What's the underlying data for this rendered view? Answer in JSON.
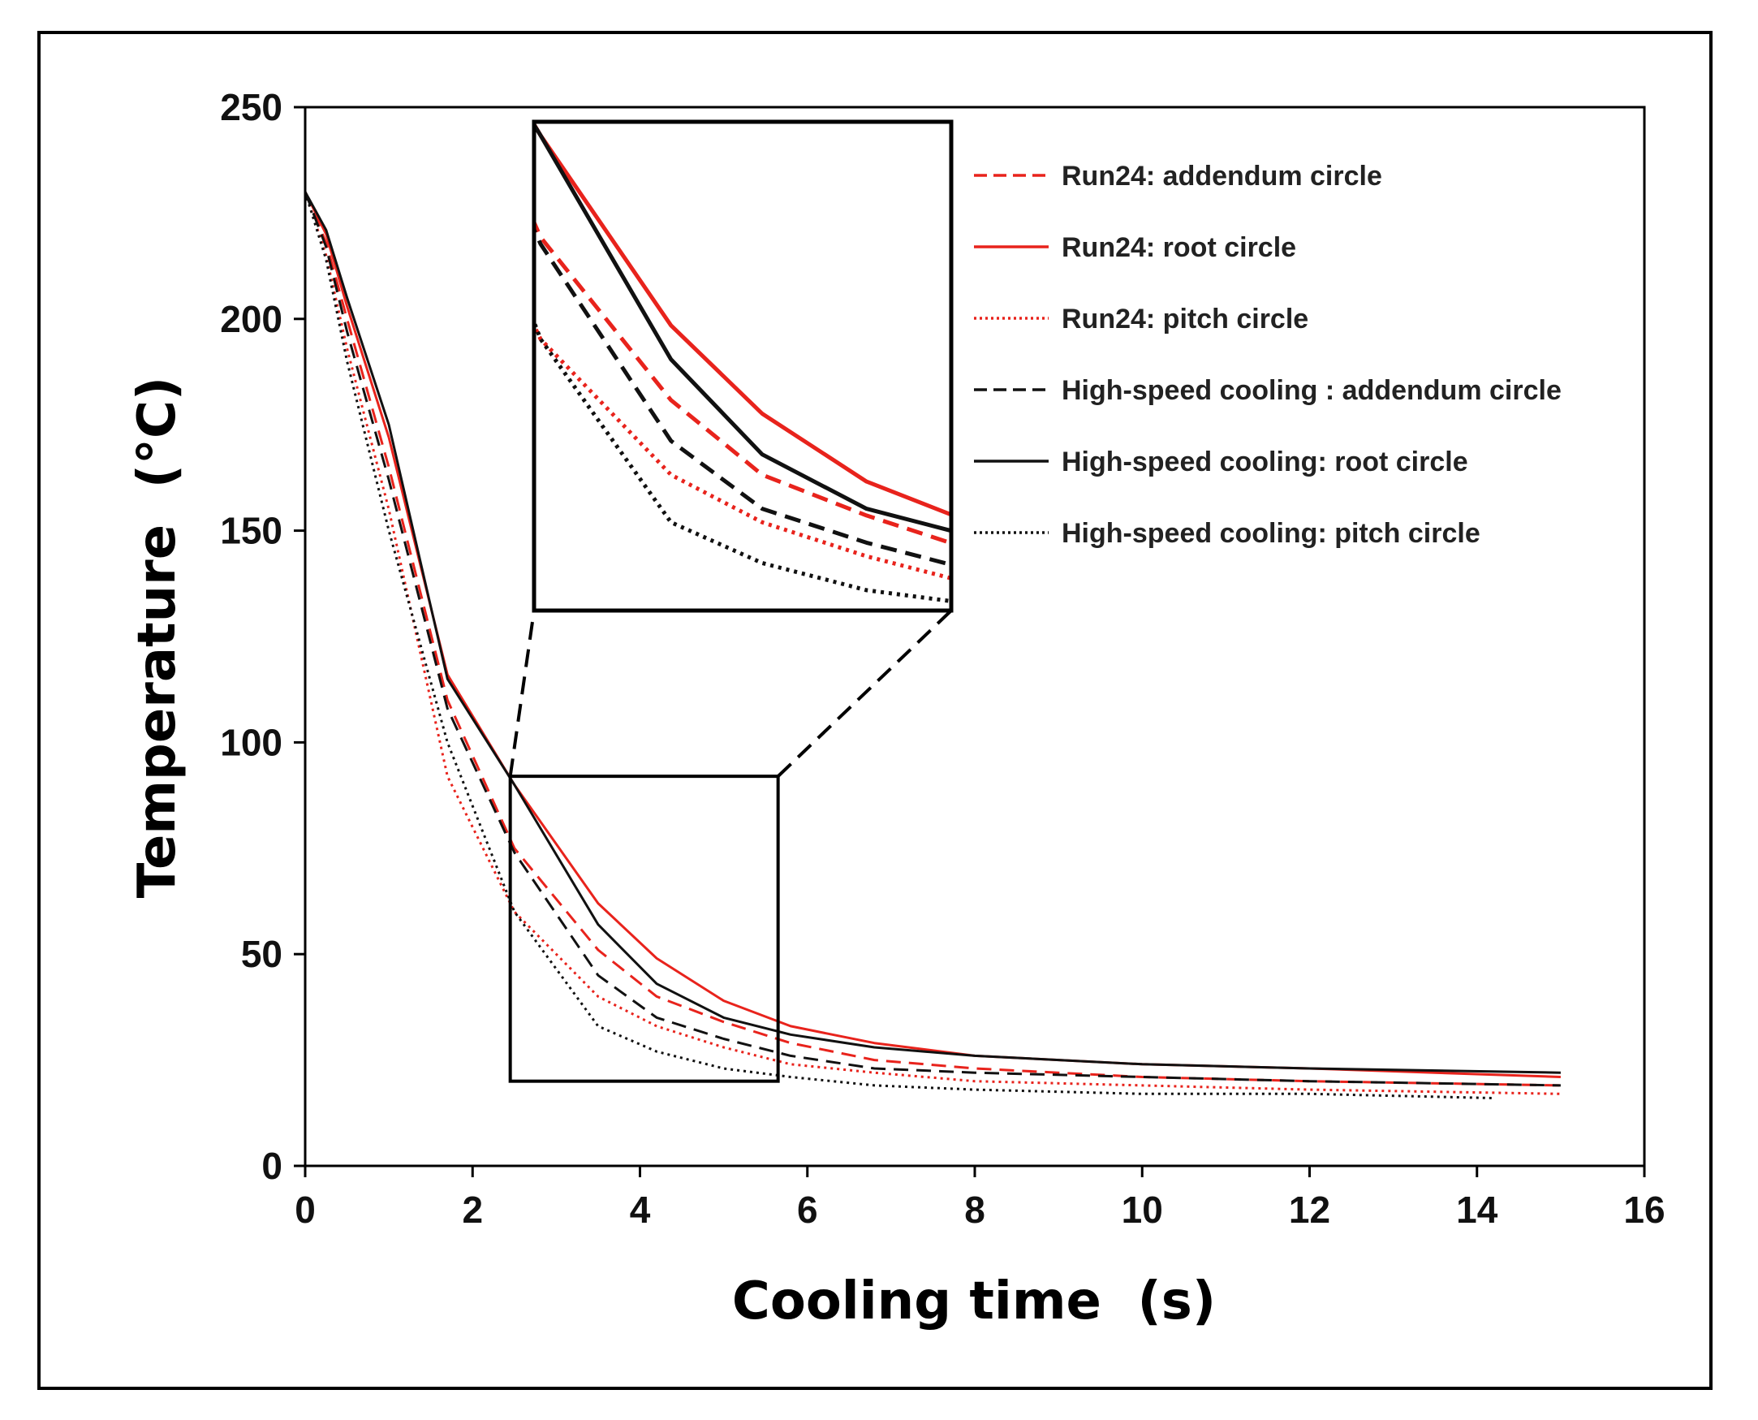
{
  "chart_data": {
    "type": "line",
    "xlabel": "Cooling time  (s)",
    "ylabel": "Temperature  (°C)",
    "xlim": [
      0,
      16
    ],
    "ylim": [
      0,
      250
    ],
    "x_ticks": [
      0,
      2,
      4,
      6,
      8,
      10,
      12,
      14,
      16
    ],
    "y_ticks": [
      0,
      50,
      100,
      150,
      200,
      250
    ],
    "grid": false,
    "legend_position": "top-right",
    "zoom_region": {
      "x": [
        2.45,
        5.65
      ],
      "y": [
        20,
        92
      ]
    },
    "series": [
      {
        "name": "Run24: addendum circle",
        "color": "#e8231c",
        "style": "dashed",
        "x": [
          0,
          0.25,
          0.5,
          1,
          1.7,
          2.5,
          3.5,
          4.2,
          5,
          5.8,
          6.8,
          8,
          10,
          12,
          15
        ],
        "y": [
          230,
          218,
          200,
          165,
          110,
          75,
          51,
          40,
          34,
          29,
          25,
          23,
          21,
          20,
          19
        ]
      },
      {
        "name": "Run24: root circle",
        "color": "#e8231c",
        "style": "solid",
        "x": [
          0,
          0.25,
          0.5,
          1,
          1.7,
          2.5,
          3.5,
          4.2,
          5,
          5.8,
          6.8,
          8,
          10,
          12,
          15
        ],
        "y": [
          230,
          220,
          203,
          172,
          116,
          90,
          62,
          49,
          39,
          33,
          29,
          26,
          24,
          23,
          21
        ]
      },
      {
        "name": "Run24: pitch circle",
        "color": "#e8231c",
        "style": "dotted",
        "x": [
          0,
          0.25,
          0.5,
          1,
          1.7,
          2.5,
          3.5,
          4.2,
          5,
          5.8,
          6.8,
          8,
          10,
          12,
          15
        ],
        "y": [
          230,
          215,
          193,
          155,
          92,
          60,
          40,
          33,
          28,
          24,
          22,
          20,
          19,
          18,
          17
        ]
      },
      {
        "name": "High-speed cooling : addendum circle",
        "color": "#111111",
        "style": "dashed",
        "x": [
          0,
          0.25,
          0.5,
          1,
          1.7,
          2.5,
          3.5,
          4.2,
          5,
          5.8,
          6.8,
          8,
          10,
          12,
          15
        ],
        "y": [
          230,
          217,
          197,
          162,
          108,
          74,
          45,
          35,
          30,
          26,
          23,
          22,
          21,
          20,
          19
        ]
      },
      {
        "name": "High-speed cooling: root circle",
        "color": "#111111",
        "style": "solid",
        "x": [
          0,
          0.25,
          0.5,
          1,
          1.7,
          2.5,
          3.5,
          4.2,
          5,
          5.8,
          6.8,
          8,
          10,
          12,
          15
        ],
        "y": [
          230,
          221,
          205,
          175,
          115,
          90,
          57,
          43,
          35,
          31,
          28,
          26,
          24,
          23,
          22
        ]
      },
      {
        "name": "High-speed cooling: pitch circle",
        "color": "#111111",
        "style": "dotted",
        "x": [
          0,
          0.25,
          0.5,
          1,
          1.7,
          2.5,
          3.5,
          4.2,
          5,
          5.8,
          6.8,
          8,
          10,
          12,
          14.2
        ],
        "y": [
          230,
          214,
          190,
          150,
          100,
          60,
          33,
          27,
          23,
          21,
          19,
          18,
          17,
          17,
          16
        ]
      }
    ]
  }
}
